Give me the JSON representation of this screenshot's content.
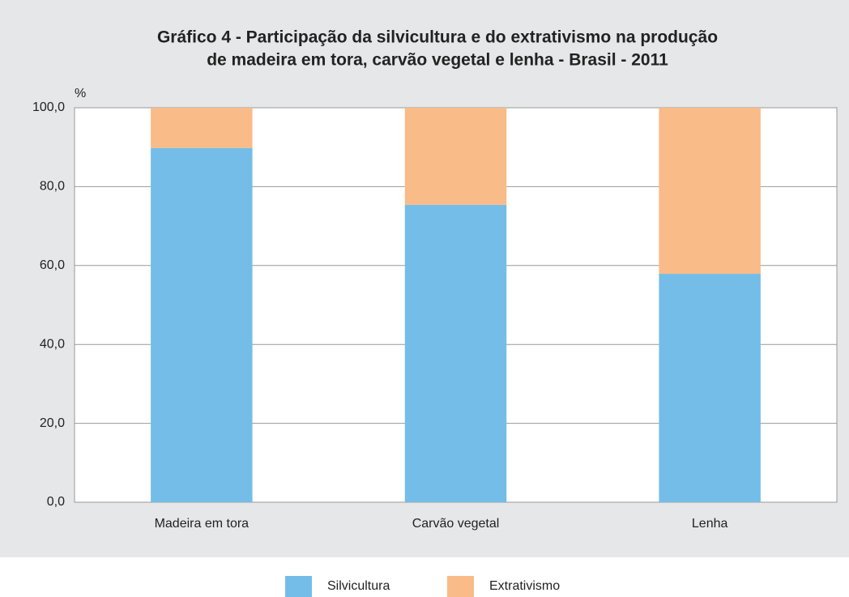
{
  "chart_data": {
    "type": "stacked_bar",
    "title": [
      "Gráfico 4 - Participação da silvicultura e do extrativismo na produção",
      "de madeira em tora, carvão vegetal e lenha - Brasil - 2011"
    ],
    "y_label": "%",
    "categories": [
      "Madeira em tora",
      "Carvão vegetal",
      "Lenha"
    ],
    "series": [
      {
        "name": "Silvicultura",
        "color": "#74bde8",
        "values": [
          89.8,
          75.4,
          57.9
        ]
      },
      {
        "name": "Extrativismo",
        "color": "#f9bb87",
        "values": [
          10.2,
          24.6,
          42.1
        ]
      }
    ],
    "ylim": [
      0,
      100
    ],
    "yticks": [
      {
        "value": 0,
        "label": "0,0"
      },
      {
        "value": 20,
        "label": "20,0"
      },
      {
        "value": 40,
        "label": "40,0"
      },
      {
        "value": 60,
        "label": "60,0"
      },
      {
        "value": 80,
        "label": "80,0"
      },
      {
        "value": 100,
        "label": "100,0"
      }
    ],
    "grid": true,
    "legend": "bottom"
  }
}
